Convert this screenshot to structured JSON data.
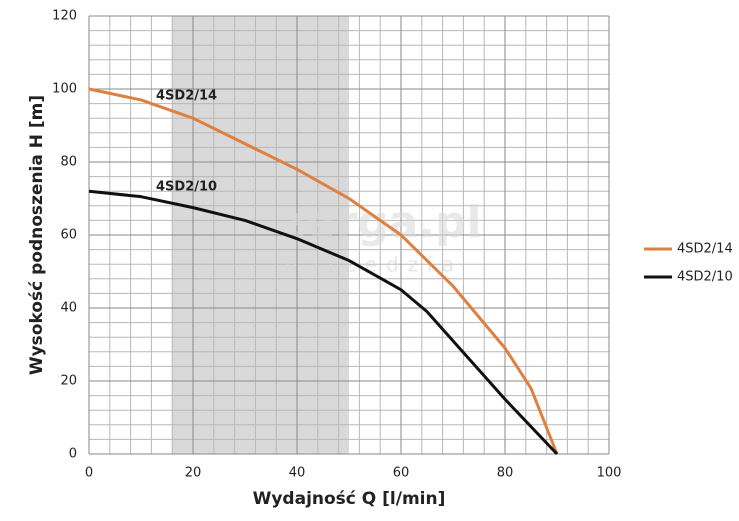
{
  "chart_data": {
    "type": "line",
    "x_label": "Wydajność Q [l/min]",
    "y_label": "Wysokość podnoszenia H [m]",
    "xlim": [
      0,
      100
    ],
    "xticks": [
      0,
      20,
      40,
      60,
      80,
      100
    ],
    "ylim": [
      0,
      120
    ],
    "yticks": [
      0,
      20,
      40,
      60,
      80,
      100,
      120
    ],
    "grid": true,
    "highlight_xrange": [
      16,
      50
    ],
    "highlight_color": "#d9d9d9",
    "legend": "right",
    "annotations": [
      "4SD2/14",
      "4SD2/10"
    ],
    "watermark": [
      "zerga.pl",
      "narzędzia"
    ],
    "series": [
      {
        "name": "4SD2/14",
        "color": "#dd8040",
        "x": [
          0,
          10,
          15,
          20,
          30,
          40,
          50,
          60,
          70,
          80,
          85,
          90
        ],
        "values": [
          100,
          97,
          94.5,
          92,
          85,
          78,
          70,
          60,
          46,
          29,
          18,
          0
        ]
      },
      {
        "name": "4SD2/10",
        "color": "#111111",
        "x": [
          0,
          10,
          20,
          30,
          40,
          50,
          60,
          65,
          70,
          80,
          90
        ],
        "values": [
          72,
          70.5,
          67.5,
          64,
          59,
          53,
          45,
          39,
          31,
          15,
          0
        ]
      }
    ]
  }
}
